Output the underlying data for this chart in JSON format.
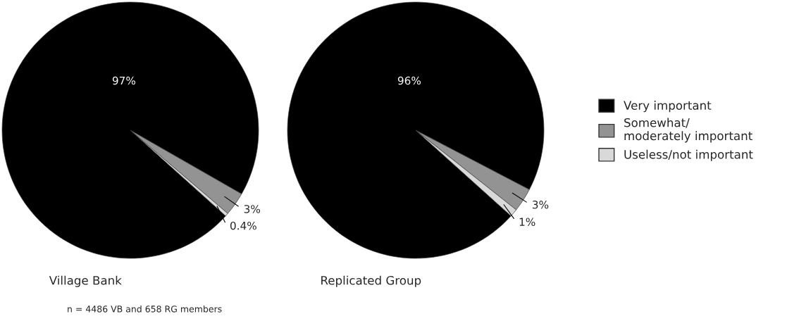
{
  "chart_data": [
    {
      "type": "pie",
      "title": "Village Bank",
      "categories": [
        "Very important",
        "Somewhat/\nmoderately important",
        "Useless/not important"
      ],
      "values": [
        97,
        3,
        0.4
      ],
      "value_labels": [
        "97%",
        "3%",
        "0.4%"
      ],
      "colors": [
        "#000000",
        "#939393",
        "#d9d9d9"
      ],
      "legend": "right",
      "annotations": [
        "n = 4486 VB and 658 RG members"
      ]
    },
    {
      "type": "pie",
      "title": "Replicated Group",
      "categories": [
        null,
        null,
        null
      ],
      "values": [
        96,
        3,
        1
      ],
      "value_labels": [
        "96%",
        "3%",
        "1%"
      ],
      "colors": [
        "#000000",
        "#939393",
        "#d9d9d9"
      ]
    }
  ]
}
